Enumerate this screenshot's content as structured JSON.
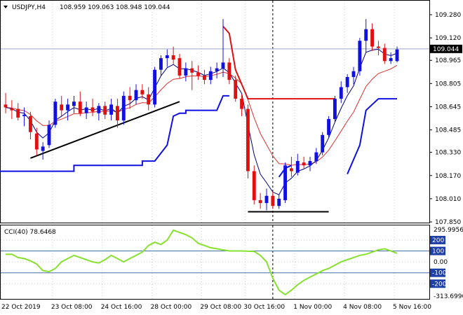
{
  "header": {
    "symbol": "USDJPY,H4",
    "ohlc": "108.959 109.063 108.948 109.044",
    "menu_icon": "triangle-down-icon"
  },
  "colors": {
    "bull": "#1010e0",
    "bear": "#e01010",
    "indicator": "#88e030",
    "trend": "#000000",
    "grid": "#cccccc",
    "highlight_level": "#4a6fa5",
    "price_tag_bg": "#000000",
    "cci_badge_bg": "#1e3ea8"
  },
  "chart_data": [
    {
      "type": "candlestick",
      "title": "USDJPY,H4",
      "y_ticks": [
        "109.280",
        "109.120",
        "108.965",
        "108.805",
        "108.645",
        "108.485",
        "108.330",
        "108.170",
        "108.010",
        "107.850"
      ],
      "ylim": [
        107.85,
        109.3
      ],
      "current_price": "109.044",
      "x_labels": [
        "22 Oct 2019",
        "23 Oct 08:00",
        "24 Oct 16:00",
        "28 Oct 00:00",
        "29 Oct 08:00",
        "30 Oct 16:00",
        "1 Nov 00:00",
        "4 Nov 08:00",
        "5 Nov 16:00"
      ],
      "candles": [
        {
          "o": 108.66,
          "h": 108.74,
          "l": 108.6,
          "c": 108.64
        },
        {
          "o": 108.63,
          "h": 108.69,
          "l": 108.56,
          "c": 108.62
        },
        {
          "o": 108.63,
          "h": 108.67,
          "l": 108.55,
          "c": 108.57
        },
        {
          "o": 108.58,
          "h": 108.64,
          "l": 108.51,
          "c": 108.59
        },
        {
          "o": 108.58,
          "h": 108.61,
          "l": 108.42,
          "c": 108.47
        },
        {
          "o": 108.46,
          "h": 108.5,
          "l": 108.31,
          "c": 108.35
        },
        {
          "o": 108.34,
          "h": 108.4,
          "l": 108.28,
          "c": 108.37
        },
        {
          "o": 108.38,
          "h": 108.55,
          "l": 108.36,
          "c": 108.52
        },
        {
          "o": 108.52,
          "h": 108.7,
          "l": 108.5,
          "c": 108.68
        },
        {
          "o": 108.66,
          "h": 108.72,
          "l": 108.58,
          "c": 108.62
        },
        {
          "o": 108.62,
          "h": 108.7,
          "l": 108.55,
          "c": 108.66
        },
        {
          "o": 108.65,
          "h": 108.72,
          "l": 108.6,
          "c": 108.68
        },
        {
          "o": 108.68,
          "h": 108.75,
          "l": 108.58,
          "c": 108.6
        },
        {
          "o": 108.6,
          "h": 108.68,
          "l": 108.56,
          "c": 108.64
        },
        {
          "o": 108.64,
          "h": 108.7,
          "l": 108.58,
          "c": 108.61
        },
        {
          "o": 108.6,
          "h": 108.67,
          "l": 108.55,
          "c": 108.65
        },
        {
          "o": 108.65,
          "h": 108.68,
          "l": 108.56,
          "c": 108.59
        },
        {
          "o": 108.59,
          "h": 108.7,
          "l": 108.55,
          "c": 108.66
        },
        {
          "o": 108.65,
          "h": 108.7,
          "l": 108.5,
          "c": 108.55
        },
        {
          "o": 108.55,
          "h": 108.75,
          "l": 108.52,
          "c": 108.72
        },
        {
          "o": 108.72,
          "h": 108.78,
          "l": 108.63,
          "c": 108.69
        },
        {
          "o": 108.69,
          "h": 108.8,
          "l": 108.66,
          "c": 108.76
        },
        {
          "o": 108.76,
          "h": 108.8,
          "l": 108.7,
          "c": 108.73
        },
        {
          "o": 108.73,
          "h": 108.78,
          "l": 108.62,
          "c": 108.66
        },
        {
          "o": 108.66,
          "h": 108.92,
          "l": 108.64,
          "c": 108.9
        },
        {
          "o": 108.9,
          "h": 109.0,
          "l": 108.86,
          "c": 108.98
        },
        {
          "o": 108.98,
          "h": 109.04,
          "l": 108.92,
          "c": 109.0
        },
        {
          "o": 109.0,
          "h": 109.06,
          "l": 108.94,
          "c": 108.97
        },
        {
          "o": 108.98,
          "h": 109.01,
          "l": 108.84,
          "c": 108.86
        },
        {
          "o": 108.86,
          "h": 108.95,
          "l": 108.82,
          "c": 108.91
        },
        {
          "o": 108.91,
          "h": 108.96,
          "l": 108.76,
          "c": 108.88
        },
        {
          "o": 108.88,
          "h": 108.93,
          "l": 108.83,
          "c": 108.86
        },
        {
          "o": 108.86,
          "h": 108.9,
          "l": 108.8,
          "c": 108.83
        },
        {
          "o": 108.83,
          "h": 108.92,
          "l": 108.8,
          "c": 108.89
        },
        {
          "o": 108.89,
          "h": 108.95,
          "l": 108.84,
          "c": 108.91
        },
        {
          "o": 108.91,
          "h": 109.25,
          "l": 108.85,
          "c": 108.95
        },
        {
          "o": 108.95,
          "h": 108.98,
          "l": 108.8,
          "c": 108.83
        },
        {
          "o": 108.83,
          "h": 108.86,
          "l": 108.68,
          "c": 108.7
        },
        {
          "o": 108.7,
          "h": 108.73,
          "l": 108.58,
          "c": 108.63
        },
        {
          "o": 108.63,
          "h": 108.66,
          "l": 108.15,
          "c": 108.2
        },
        {
          "o": 108.2,
          "h": 108.24,
          "l": 107.97,
          "c": 108.0
        },
        {
          "o": 108.0,
          "h": 108.05,
          "l": 107.94,
          "c": 107.98
        },
        {
          "o": 107.98,
          "h": 108.08,
          "l": 107.93,
          "c": 108.03
        },
        {
          "o": 108.03,
          "h": 108.06,
          "l": 107.94,
          "c": 107.96
        },
        {
          "o": 107.96,
          "h": 108.04,
          "l": 107.94,
          "c": 108.01
        },
        {
          "o": 108.0,
          "h": 108.26,
          "l": 107.98,
          "c": 108.24
        },
        {
          "o": 108.22,
          "h": 108.3,
          "l": 108.16,
          "c": 108.2
        },
        {
          "o": 108.19,
          "h": 108.32,
          "l": 108.17,
          "c": 108.27
        },
        {
          "o": 108.26,
          "h": 108.3,
          "l": 108.22,
          "c": 108.24
        },
        {
          "o": 108.24,
          "h": 108.3,
          "l": 108.2,
          "c": 108.27
        },
        {
          "o": 108.27,
          "h": 108.36,
          "l": 108.25,
          "c": 108.33
        },
        {
          "o": 108.33,
          "h": 108.47,
          "l": 108.31,
          "c": 108.45
        },
        {
          "o": 108.45,
          "h": 108.58,
          "l": 108.43,
          "c": 108.56
        },
        {
          "o": 108.56,
          "h": 108.72,
          "l": 108.54,
          "c": 108.7
        },
        {
          "o": 108.7,
          "h": 108.82,
          "l": 108.67,
          "c": 108.78
        },
        {
          "o": 108.78,
          "h": 108.87,
          "l": 108.74,
          "c": 108.85
        },
        {
          "o": 108.85,
          "h": 108.92,
          "l": 108.8,
          "c": 108.89
        },
        {
          "o": 108.89,
          "h": 109.12,
          "l": 108.86,
          "c": 109.1
        },
        {
          "o": 109.1,
          "h": 109.25,
          "l": 109.02,
          "c": 109.18
        },
        {
          "o": 109.18,
          "h": 109.22,
          "l": 109.03,
          "c": 109.06
        },
        {
          "o": 109.06,
          "h": 109.1,
          "l": 109.0,
          "c": 109.05
        },
        {
          "o": 109.05,
          "h": 109.08,
          "l": 108.94,
          "c": 108.96
        },
        {
          "o": 108.96,
          "h": 109.02,
          "l": 108.94,
          "c": 108.98
        },
        {
          "o": 108.96,
          "h": 109.06,
          "l": 108.95,
          "c": 109.04
        }
      ]
    },
    {
      "type": "line",
      "title": "CCI(40) 78.6468",
      "ylim": [
        -313.6996,
        295.9956
      ],
      "y_tick_labels": [
        "295.9956",
        "200",
        "100",
        "0.00",
        "-100",
        "-200",
        "-313.6996"
      ],
      "levels": [
        200,
        100,
        0,
        -100,
        -200
      ],
      "highlight_levels": [
        "100",
        "-100"
      ],
      "values": [
        70,
        70,
        40,
        30,
        10,
        -20,
        -80,
        -90,
        -60,
        0,
        30,
        60,
        40,
        20,
        0,
        -10,
        20,
        60,
        30,
        0,
        30,
        60,
        90,
        150,
        180,
        160,
        200,
        290,
        270,
        250,
        220,
        170,
        150,
        130,
        120,
        110,
        100,
        100,
        100,
        98,
        96,
        60,
        0,
        -150,
        -260,
        -300,
        -260,
        -210,
        -170,
        -140,
        -110,
        -80,
        -60,
        -30,
        0,
        20,
        40,
        60,
        70,
        90,
        110,
        120,
        100,
        78.6
      ]
    }
  ]
}
